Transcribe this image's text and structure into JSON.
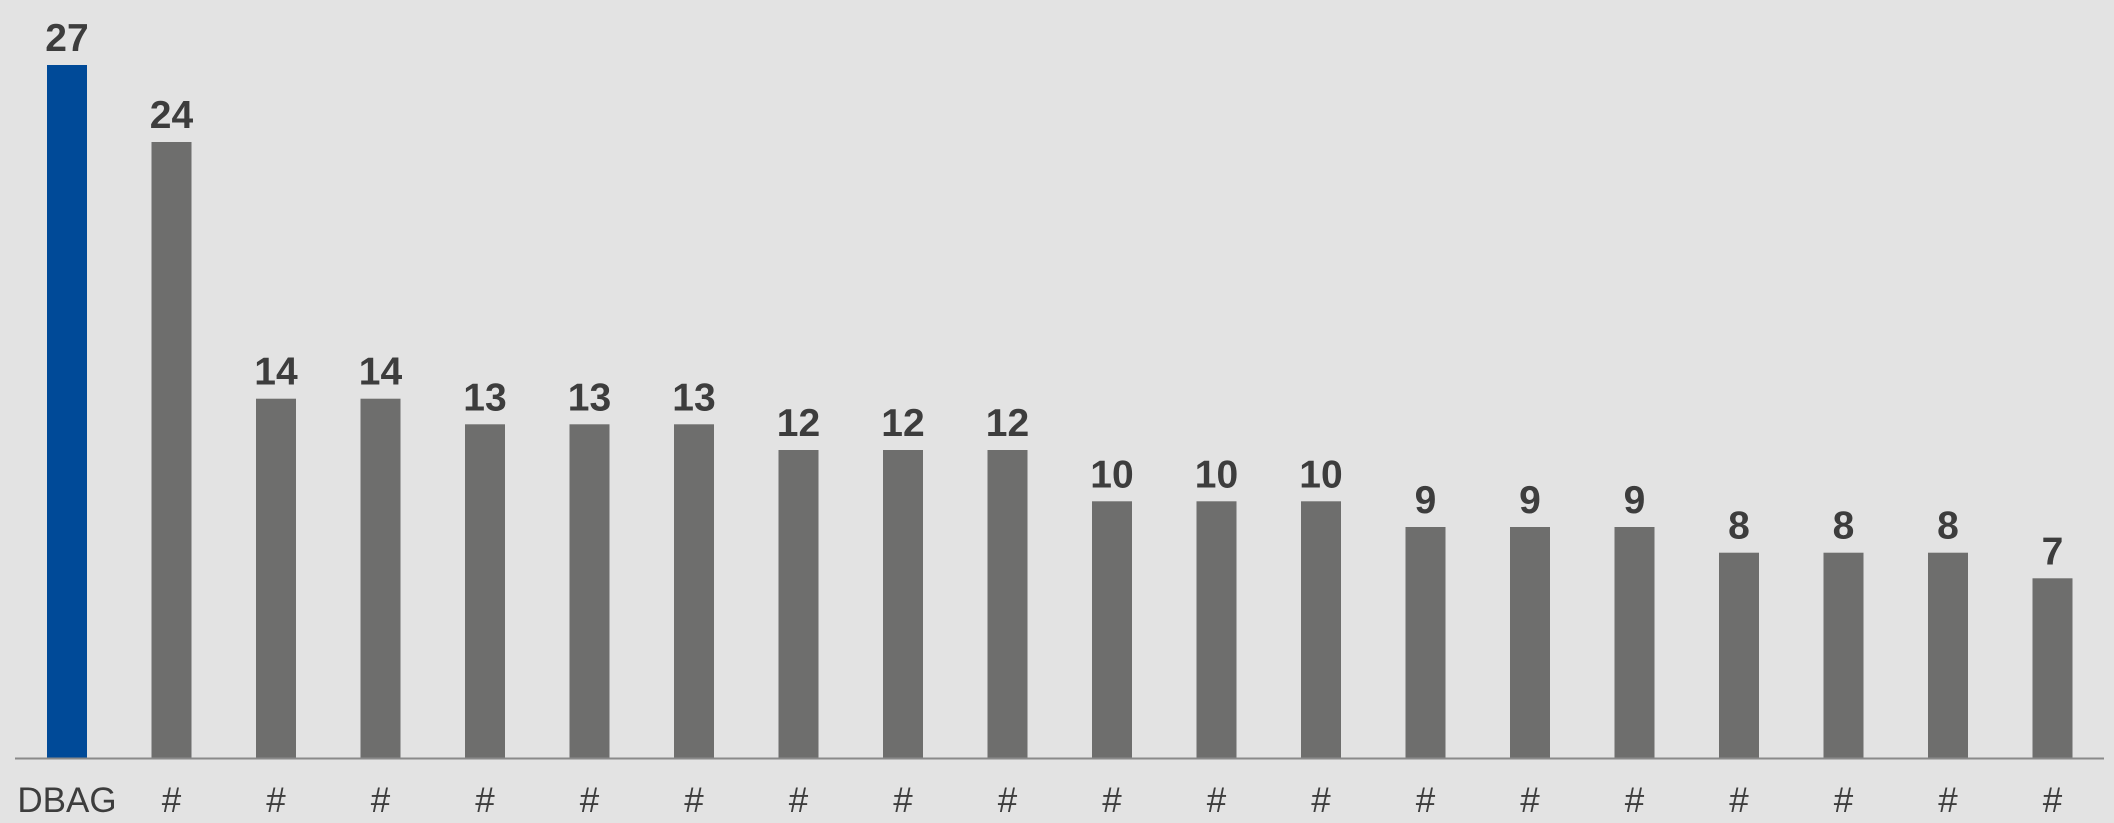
{
  "chart_data": {
    "type": "bar",
    "categories": [
      "DBAG",
      "#",
      "#",
      "#",
      "#",
      "#",
      "#",
      "#",
      "#",
      "#",
      "#",
      "#",
      "#",
      "#",
      "#",
      "#",
      "#",
      "#",
      "#",
      "#"
    ],
    "values": [
      27,
      24,
      14,
      14,
      13,
      13,
      13,
      12,
      12,
      12,
      10,
      10,
      10,
      9,
      9,
      9,
      8,
      8,
      8,
      7
    ],
    "title": "",
    "xlabel": "",
    "ylabel": "",
    "ylim": [
      0,
      27
    ],
    "grid": false,
    "legend": "none",
    "show_value_labels": true,
    "show_y_axis": false
  },
  "colors": {
    "background": "#e3e3e3",
    "highlight_bar": "#004a98",
    "default_bar": "#6e6e6d",
    "value_label": "#3d3d3d",
    "tick_label": "#3d3d3d",
    "baseline": "#8a8a8a"
  },
  "highlight_index": 0
}
